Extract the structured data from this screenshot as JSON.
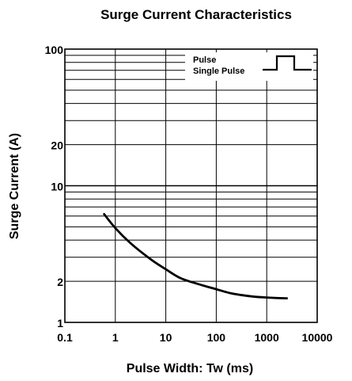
{
  "chart_data": {
    "type": "line",
    "title": "Surge Current Characteristics",
    "xlabel": "Pulse Width: Tw (ms)",
    "ylabel": "Surge Current  (A)",
    "xscale": "log",
    "yscale": "log",
    "xlim": [
      0.1,
      10000
    ],
    "ylim": [
      1,
      100
    ],
    "x_ticks": [
      "0.1",
      "1",
      "10",
      "100",
      "1000",
      "10000"
    ],
    "y_ticks": [
      "1",
      "2",
      "10",
      "20",
      "100"
    ],
    "grid": true,
    "legend": {
      "position": "top-right",
      "entries": [
        "Pulse",
        "Single Pulse"
      ]
    },
    "series": [
      {
        "color": "#000000",
        "x": [
          0.6,
          1,
          2,
          5,
          10,
          20,
          50,
          100,
          200,
          500,
          1000,
          2500
        ],
        "y": [
          6.2,
          4.9,
          3.8,
          2.9,
          2.45,
          2.1,
          1.88,
          1.75,
          1.63,
          1.55,
          1.52,
          1.5
        ]
      }
    ]
  }
}
